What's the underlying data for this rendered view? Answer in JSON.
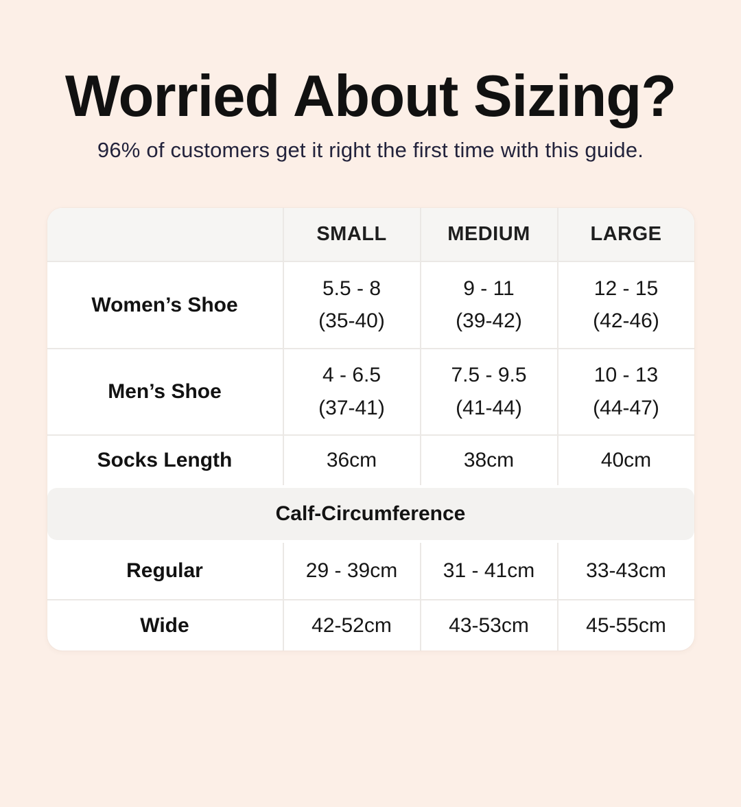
{
  "page": {
    "bg_color": "#fcefe7",
    "title": "Worried About Sizing?",
    "subtitle": "96% of customers get it right the first time with this guide.",
    "title_color": "#111111",
    "subtitle_color": "#23233c"
  },
  "table": {
    "header_bg": "#f6f5f3",
    "band_bg": "#f3f2f0",
    "divider_color": "#ebe8e5",
    "columns": [
      "",
      "SMALL",
      "MEDIUM",
      "LARGE"
    ],
    "rows": [
      {
        "label": "Women’s Shoe",
        "cells": [
          [
            "5.5 - 8",
            "(35-40)"
          ],
          [
            "9 - 11",
            "(39-42)"
          ],
          [
            "12 - 15",
            "(42-46)"
          ]
        ]
      },
      {
        "label": "Men’s Shoe",
        "cells": [
          [
            "4 - 6.5",
            "(37-41)"
          ],
          [
            "7.5 - 9.5",
            "(41-44)"
          ],
          [
            "10 - 13",
            "(44-47)"
          ]
        ]
      },
      {
        "label": "Socks Length",
        "cells": [
          [
            "36cm"
          ],
          [
            "38cm"
          ],
          [
            "40cm"
          ]
        ]
      }
    ],
    "section_header": "Calf-Circumference",
    "section_rows": [
      {
        "label": "Regular",
        "cells": [
          "29 - 39cm",
          "31 - 41cm",
          "33-43cm"
        ]
      },
      {
        "label": "Wide",
        "cells": [
          "42-52cm",
          "43-53cm",
          "45-55cm"
        ]
      }
    ]
  }
}
